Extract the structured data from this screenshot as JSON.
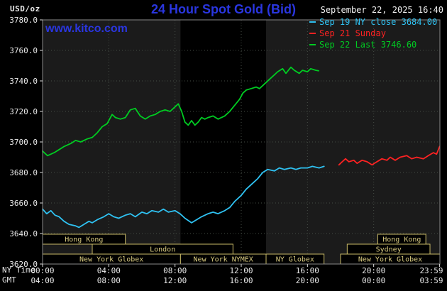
{
  "header": {
    "datetime": "September 22, 2025 16:40",
    "watermark": "www.kitco.com"
  },
  "colors": {
    "title": "#2a36e0",
    "text": "#ebebeb",
    "page_bg": "#000000",
    "plot_bg": "#1b1b1b",
    "band": "#000000",
    "grid": "#454d45",
    "frame": "#8a8a8a",
    "tick": "#dddddd",
    "session_border": "#c9ba67",
    "session_text": "#d9cb80",
    "session_fill": "#000000"
  },
  "axis_corner": {
    "ny": "NY Time",
    "gmt": "GMT"
  },
  "chart_data": {
    "type": "line",
    "title": "24 Hour Spot Gold (Bid)",
    "ylabel": "USD/oz",
    "ylim": [
      3620,
      3780
    ],
    "yticks": [
      3620,
      3640,
      3660,
      3680,
      3700,
      3720,
      3740,
      3760,
      3780
    ],
    "ygrid": [
      3640,
      3660,
      3680,
      3700,
      3720,
      3740,
      3760
    ],
    "xgrid": [
      4,
      8,
      12,
      16,
      20
    ],
    "xlim_hours": [
      0,
      24
    ],
    "band_hours": [
      8.33,
      13.5
    ],
    "xticks": [
      {
        "h": 0,
        "ny": "00:00",
        "gmt": "04:00"
      },
      {
        "h": 4,
        "ny": "04:00",
        "gmt": "08:00"
      },
      {
        "h": 8,
        "ny": "08:00",
        "gmt": "12:00"
      },
      {
        "h": 12,
        "ny": "12:00",
        "gmt": "16:00"
      },
      {
        "h": 16,
        "ny": "16:00",
        "gmt": "20:00"
      },
      {
        "h": 20,
        "ny": "20:00",
        "gmt": "00:00"
      },
      {
        "h": 23.983,
        "ny": "23:59",
        "gmt": "03:59"
      }
    ],
    "series": [
      {
        "id": "sep19-ny-close",
        "name": "Sep 19 NY close 3684.00",
        "color": "#2fc2f2",
        "points": [
          [
            0,
            3656
          ],
          [
            0.25,
            3653
          ],
          [
            0.5,
            3655
          ],
          [
            0.75,
            3652
          ],
          [
            1,
            3651
          ],
          [
            1.3,
            3648
          ],
          [
            1.6,
            3646
          ],
          [
            2,
            3645
          ],
          [
            2.2,
            3644
          ],
          [
            2.5,
            3646
          ],
          [
            2.8,
            3648
          ],
          [
            3,
            3647
          ],
          [
            3.3,
            3649
          ],
          [
            3.7,
            3651
          ],
          [
            4,
            3653
          ],
          [
            4.3,
            3651
          ],
          [
            4.6,
            3650
          ],
          [
            5,
            3652
          ],
          [
            5.3,
            3653
          ],
          [
            5.6,
            3651
          ],
          [
            6,
            3654
          ],
          [
            6.3,
            3653
          ],
          [
            6.6,
            3655
          ],
          [
            7,
            3654
          ],
          [
            7.3,
            3656
          ],
          [
            7.6,
            3654
          ],
          [
            8,
            3655
          ],
          [
            8.3,
            3653
          ],
          [
            8.6,
            3650
          ],
          [
            9,
            3647
          ],
          [
            9.3,
            3649
          ],
          [
            9.6,
            3651
          ],
          [
            10,
            3653
          ],
          [
            10.3,
            3654
          ],
          [
            10.6,
            3653
          ],
          [
            11,
            3655
          ],
          [
            11.3,
            3657
          ],
          [
            11.6,
            3661
          ],
          [
            12,
            3665
          ],
          [
            12.3,
            3669
          ],
          [
            12.6,
            3672
          ],
          [
            13,
            3676
          ],
          [
            13.3,
            3680
          ],
          [
            13.6,
            3682
          ],
          [
            14,
            3681
          ],
          [
            14.3,
            3683
          ],
          [
            14.6,
            3682
          ],
          [
            15,
            3683
          ],
          [
            15.3,
            3682
          ],
          [
            15.6,
            3683
          ],
          [
            16,
            3683
          ],
          [
            16.3,
            3684
          ],
          [
            16.7,
            3683
          ],
          [
            17,
            3684
          ]
        ]
      },
      {
        "id": "sep21-sunday",
        "name": "Sep 21 Sunday",
        "color": "#ff2222",
        "points": [
          [
            17.9,
            3685
          ],
          [
            18.1,
            3687
          ],
          [
            18.3,
            3689
          ],
          [
            18.5,
            3687
          ],
          [
            18.8,
            3688
          ],
          [
            19,
            3686
          ],
          [
            19.3,
            3688
          ],
          [
            19.6,
            3687
          ],
          [
            19.9,
            3685
          ],
          [
            20.2,
            3687
          ],
          [
            20.5,
            3689
          ],
          [
            20.8,
            3688
          ],
          [
            21,
            3690
          ],
          [
            21.3,
            3688
          ],
          [
            21.6,
            3690
          ],
          [
            22,
            3691
          ],
          [
            22.3,
            3689
          ],
          [
            22.6,
            3690
          ],
          [
            23,
            3689
          ],
          [
            23.3,
            3691
          ],
          [
            23.6,
            3693
          ],
          [
            23.8,
            3692
          ],
          [
            23.983,
            3697
          ]
        ]
      },
      {
        "id": "sep22-last",
        "name": "Sep 22 Last 3746.60",
        "color": "#00cc22",
        "points": [
          [
            0,
            3694
          ],
          [
            0.3,
            3691
          ],
          [
            0.7,
            3693
          ],
          [
            1,
            3695
          ],
          [
            1.3,
            3697
          ],
          [
            1.7,
            3699
          ],
          [
            2,
            3701
          ],
          [
            2.3,
            3700
          ],
          [
            2.7,
            3702
          ],
          [
            3,
            3703
          ],
          [
            3.3,
            3706
          ],
          [
            3.6,
            3710
          ],
          [
            3.9,
            3712
          ],
          [
            4.2,
            3718
          ],
          [
            4.4,
            3716
          ],
          [
            4.7,
            3715
          ],
          [
            5,
            3716
          ],
          [
            5.3,
            3721
          ],
          [
            5.6,
            3722
          ],
          [
            5.9,
            3717
          ],
          [
            6.2,
            3715
          ],
          [
            6.5,
            3717
          ],
          [
            6.8,
            3718
          ],
          [
            7.1,
            3720
          ],
          [
            7.4,
            3721
          ],
          [
            7.7,
            3720
          ],
          [
            8,
            3723
          ],
          [
            8.2,
            3725
          ],
          [
            8.4,
            3720
          ],
          [
            8.6,
            3713
          ],
          [
            8.8,
            3711
          ],
          [
            9,
            3714
          ],
          [
            9.2,
            3711
          ],
          [
            9.4,
            3713
          ],
          [
            9.6,
            3716
          ],
          [
            9.8,
            3715
          ],
          [
            10,
            3716
          ],
          [
            10.3,
            3717
          ],
          [
            10.6,
            3715
          ],
          [
            11,
            3717
          ],
          [
            11.3,
            3720
          ],
          [
            11.6,
            3724
          ],
          [
            11.9,
            3728
          ],
          [
            12.1,
            3732
          ],
          [
            12.3,
            3734
          ],
          [
            12.6,
            3735
          ],
          [
            12.9,
            3736
          ],
          [
            13.1,
            3735
          ],
          [
            13.4,
            3738
          ],
          [
            13.7,
            3741
          ],
          [
            14,
            3744
          ],
          [
            14.2,
            3746
          ],
          [
            14.5,
            3748
          ],
          [
            14.7,
            3745
          ],
          [
            15,
            3749
          ],
          [
            15.2,
            3747
          ],
          [
            15.5,
            3745
          ],
          [
            15.7,
            3747
          ],
          [
            16,
            3746
          ],
          [
            16.2,
            3748
          ],
          [
            16.5,
            3747
          ],
          [
            16.67,
            3746.6
          ]
        ]
      }
    ],
    "sessions": [
      {
        "label": "Hong Kong",
        "row": 0,
        "start": 0,
        "end": 5
      },
      {
        "label": "Hong Kong",
        "row": 0,
        "start": 20.25,
        "end": 23.15
      },
      {
        "label": "London",
        "row": 1,
        "start": 3,
        "end": 11.5
      },
      {
        "label": "Sydney",
        "row": 1,
        "start": 18.4,
        "end": 23.4
      },
      {
        "label": "New York Globex",
        "row": 2,
        "start": 0,
        "end": 8.33
      },
      {
        "label": "New York NYMEX",
        "row": 2,
        "start": 8.33,
        "end": 13.5
      },
      {
        "label": "NY Globex",
        "row": 2,
        "start": 13.5,
        "end": 17
      },
      {
        "label": "New York Globex",
        "row": 2,
        "start": 18,
        "end": 24
      }
    ]
  }
}
